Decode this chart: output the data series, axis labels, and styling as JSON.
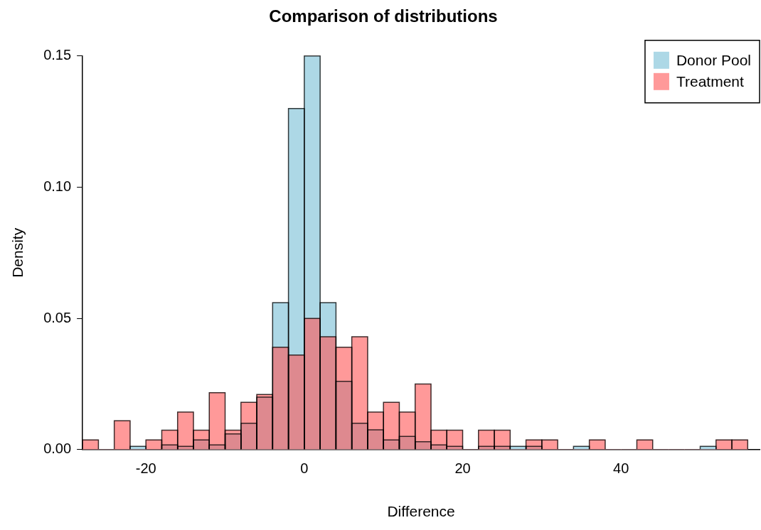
{
  "chart_data": {
    "type": "histogram",
    "title": "Comparison of distributions",
    "xlabel": "Difference",
    "ylabel": "Density",
    "bins": [
      -28,
      -26,
      -24,
      -22,
      -20,
      -18,
      -16,
      -14,
      -12,
      -10,
      -8,
      -6,
      -4,
      -2,
      0,
      2,
      4,
      6,
      8,
      10,
      12,
      14,
      16,
      18,
      20,
      22,
      24,
      26,
      28,
      30,
      32,
      34,
      36,
      38,
      40,
      42,
      44,
      46,
      48,
      50,
      52,
      54,
      56
    ],
    "series": [
      {
        "name": "Donor Pool",
        "color": "#add8e6",
        "values": [
          0,
          0,
          0,
          0.0012,
          0,
          0.0018,
          0.0012,
          0.0037,
          0.0018,
          0.006,
          0.01,
          0.02,
          0.056,
          0.13,
          0.15,
          0.056,
          0.026,
          0.01,
          0.0075,
          0.0037,
          0.005,
          0.003,
          0.0018,
          0.0012,
          0,
          0.0012,
          0.0012,
          0.0012,
          0.0012,
          0,
          0,
          0.0012,
          0,
          0,
          0,
          0,
          0,
          0,
          0,
          0.0012,
          0,
          0
        ]
      },
      {
        "name": "Treatment",
        "color": "#ff9999",
        "values": [
          0.0037,
          0,
          0.011,
          0,
          0.0037,
          0.0074,
          0.0143,
          0.0074,
          0.0217,
          0.0074,
          0.018,
          0.021,
          0.039,
          0.036,
          0.05,
          0.043,
          0.039,
          0.043,
          0.0143,
          0.018,
          0.0143,
          0.025,
          0.0074,
          0.0074,
          0,
          0.0074,
          0.0074,
          0,
          0.0037,
          0.0037,
          0,
          0,
          0.0037,
          0,
          0,
          0.0037,
          0,
          0,
          0,
          0,
          0.0037,
          0.0037
        ]
      }
    ],
    "xlim": [
      -28,
      57.5
    ],
    "ylim": [
      0,
      0.15
    ],
    "xticks": [
      -20,
      0,
      20,
      40
    ],
    "yticks": [
      {
        "value": 0,
        "label": "0.00"
      },
      {
        "value": 0.05,
        "label": "0.05"
      },
      {
        "value": 0.1,
        "label": "0.10"
      },
      {
        "value": 0.15,
        "label": "0.15"
      }
    ],
    "grid": false,
    "legend": "top right"
  }
}
